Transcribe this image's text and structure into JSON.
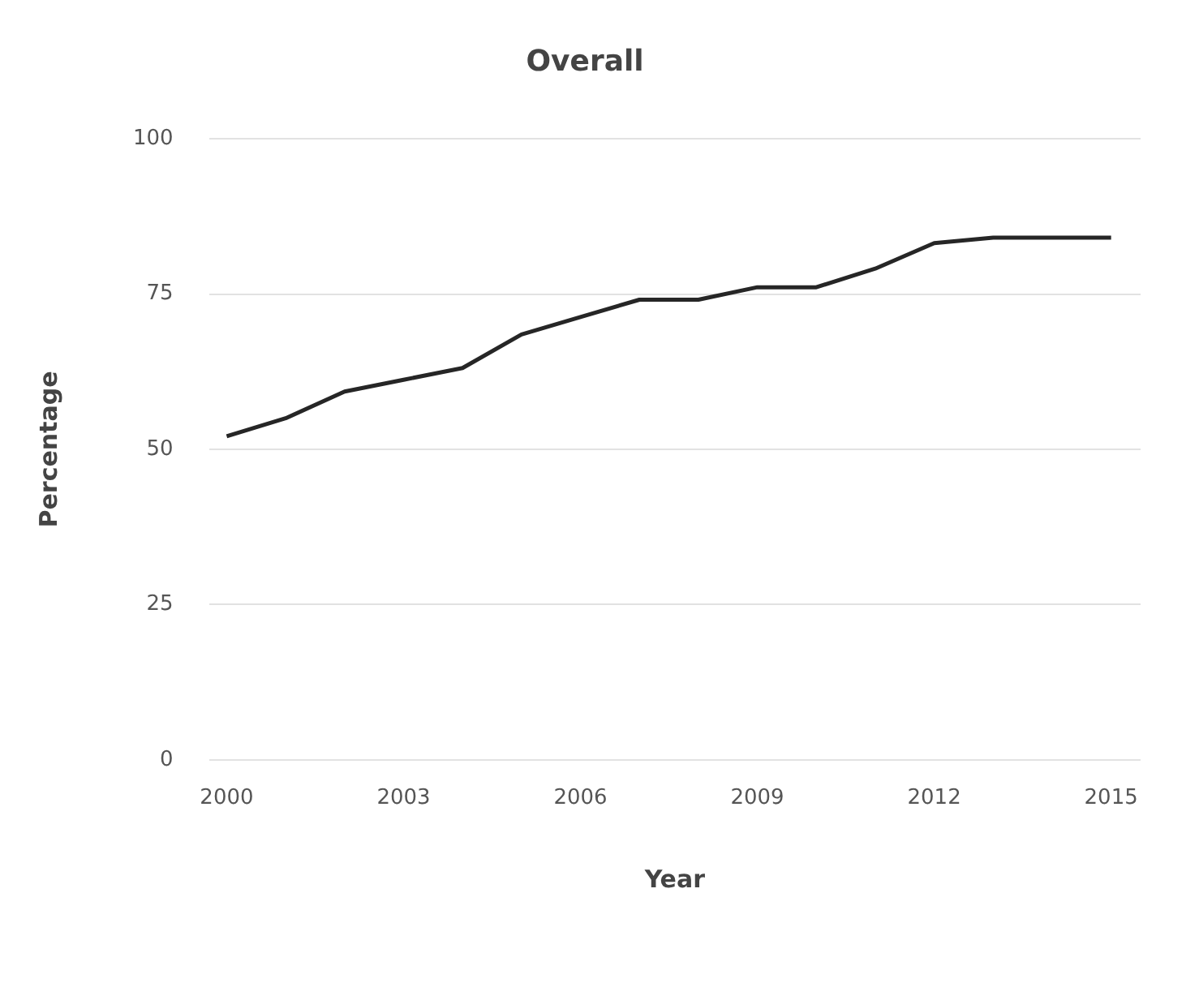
{
  "chart_data": {
    "type": "line",
    "title": "Overall",
    "xlabel": "Year",
    "ylabel": "Percentage",
    "x": [
      2000,
      2001,
      2002,
      2003,
      2004,
      2005,
      2006,
      2007,
      2008,
      2009,
      2010,
      2011,
      2012,
      2013,
      2014,
      2015
    ],
    "series": [
      {
        "color": "#262626",
        "values": [
          52.1,
          55.0,
          59.3,
          61.2,
          63.1,
          68.5,
          71.3,
          74.1,
          74.1,
          76.1,
          76.1,
          79.1,
          83.2,
          84.1,
          84.1,
          84.1
        ]
      }
    ],
    "xlim": [
      1999.7,
      2015.5
    ],
    "xticks": [
      2000,
      2003,
      2006,
      2009,
      2012,
      2015
    ],
    "ylim": [
      0,
      100
    ],
    "yticks": [
      0,
      25,
      50,
      75,
      100
    ],
    "grid": "y",
    "legend": false,
    "marker": "none",
    "line_style": "solid"
  }
}
